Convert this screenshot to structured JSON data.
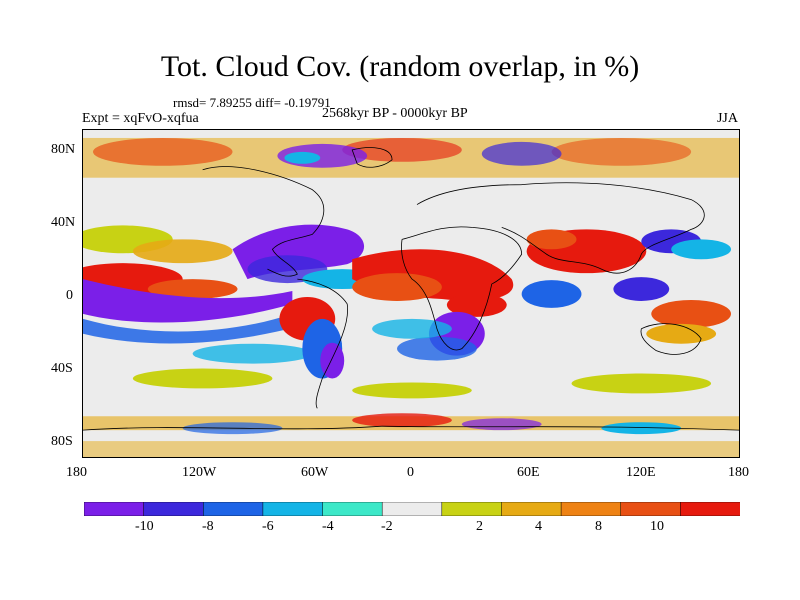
{
  "figure": {
    "title": "Tot. Cloud Cov. (random overlap, in %)",
    "stats": "rmsd= 7.89255 diff= -0.19791",
    "experiment": "Expt = xqFvO-xqfua",
    "period": "2568kyr BP - 0000kyr BP",
    "season": "JJA"
  },
  "axes": {
    "lon_labels": [
      "180",
      "120W",
      "60W",
      "0",
      "60E",
      "120E",
      "180"
    ],
    "lat_labels": [
      "80N",
      "40N",
      "0",
      "40S",
      "80S"
    ]
  },
  "colorbar": {
    "colors": [
      "#7b1fe8",
      "#3c28dc",
      "#1e64e6",
      "#14b4e6",
      "#3ce8c8",
      "#ececec",
      "#c8d214",
      "#e6aa14",
      "#ee8214",
      "#e85014",
      "#e61a0e"
    ],
    "labels": [
      "-10",
      "-8",
      "-6",
      "-4",
      "-2",
      "2",
      "4",
      "8",
      "10"
    ]
  }
}
